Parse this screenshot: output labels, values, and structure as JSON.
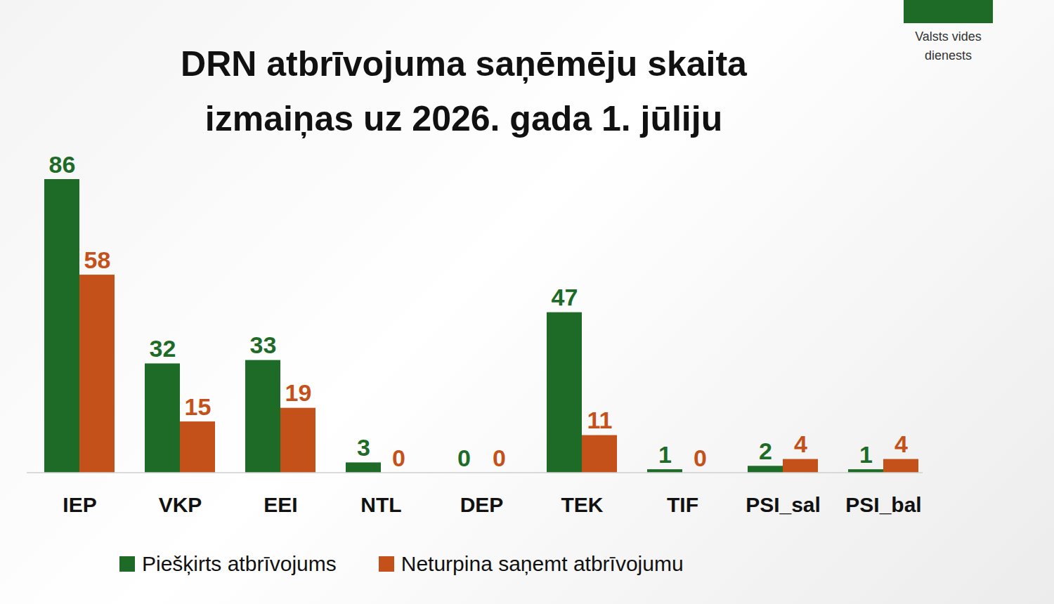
{
  "chart_data": {
    "type": "bar",
    "title": "DRN atbrīvojuma saņēmēju skaita izmaiņas uz 2026. gada 1. jūliju",
    "logo_text": "Valsts vides dienests",
    "categories": [
      "IEP",
      "VKP",
      "EEI",
      "NTL",
      "DEP",
      "TEK",
      "TIF",
      "PSI_sal",
      "PSI_bal"
    ],
    "series": [
      {
        "name": "Piešķirts atbrīvojums",
        "color": "#1e6b28",
        "values": [
          86,
          32,
          33,
          3,
          0,
          47,
          1,
          2,
          1
        ]
      },
      {
        "name": "Neturpina saņemt atbrīvojumu",
        "color": "#c4511a",
        "values": [
          58,
          15,
          19,
          0,
          0,
          11,
          0,
          4,
          4
        ]
      }
    ],
    "ylim": [
      0,
      86
    ],
    "tick_labels": "x",
    "data_labels": true,
    "legend": "bottom",
    "grid": false
  }
}
